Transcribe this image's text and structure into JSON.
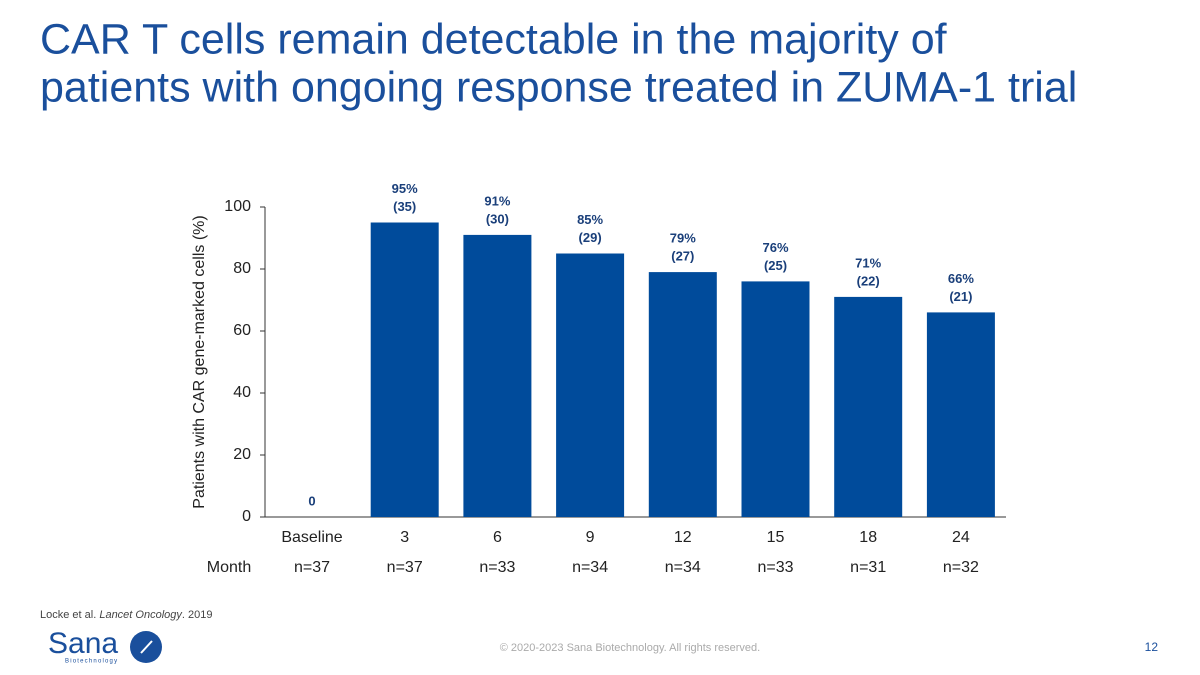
{
  "chart_data": {
    "type": "bar",
    "title": [
      "CAR T cells remain detectable in the majority of",
      "patients with ongoing response treated in ZUMA-1 trial"
    ],
    "ylabel": "Patients with CAR gene-marked cells (%)",
    "xlabel": "Month",
    "categories": [
      "Baseline",
      "3",
      "6",
      "9",
      "12",
      "15",
      "18",
      "24"
    ],
    "values": [
      0,
      95,
      91,
      85,
      79,
      76,
      71,
      66
    ],
    "value_labels": [
      "0",
      "95%",
      "91%",
      "85%",
      "79%",
      "76%",
      "71%",
      "66%"
    ],
    "count_labels": [
      null,
      "(35)",
      "(30)",
      "(29)",
      "(27)",
      "(25)",
      "(22)",
      "(21)"
    ],
    "n_labels": [
      "n=37",
      "n=37",
      "n=33",
      "n=34",
      "n=34",
      "n=33",
      "n=31",
      "n=32"
    ],
    "color": "#004b9b",
    "ylim": [
      0,
      100
    ],
    "yticks": [
      0,
      20,
      40,
      60,
      80,
      100
    ],
    "grid": false
  },
  "footer": {
    "source": [
      "Locke et al. ",
      "Lancet Oncology",
      ". 2019"
    ],
    "logo": "Sana",
    "logo_sub": "Biotechnology",
    "copyright": "© 2020-2023 Sana Biotechnology. All rights reserved.",
    "page": "12"
  }
}
